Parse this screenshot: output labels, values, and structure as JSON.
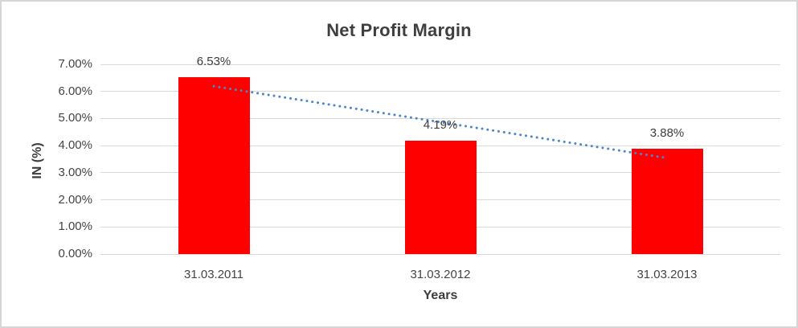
{
  "chart_data": {
    "type": "bar",
    "title": "Net Profit Margin",
    "xlabel": "Years",
    "ylabel": "IN (%)",
    "categories": [
      "31.03.2011",
      "31.03.2012",
      "31.03.2013"
    ],
    "values": [
      6.53,
      4.19,
      3.88
    ],
    "data_labels": [
      "6.53%",
      "4.19%",
      "3.88%"
    ],
    "ylim": [
      0,
      7
    ],
    "ytick_step": 1,
    "ytick_labels": [
      "0.00%",
      "1.00%",
      "2.00%",
      "3.00%",
      "4.00%",
      "5.00%",
      "6.00%",
      "7.00%"
    ],
    "grid": true,
    "legend": false,
    "bar_color": "#ff0000",
    "trendline": {
      "type": "linear",
      "style": "dotted",
      "color": "#4a86c8"
    },
    "colors": {
      "title_text": "#3f3f3f",
      "axis_text": "#444444",
      "gridline": "#d9d9d9",
      "frame_border": "#d6d6d6",
      "background": "#ffffff"
    }
  }
}
